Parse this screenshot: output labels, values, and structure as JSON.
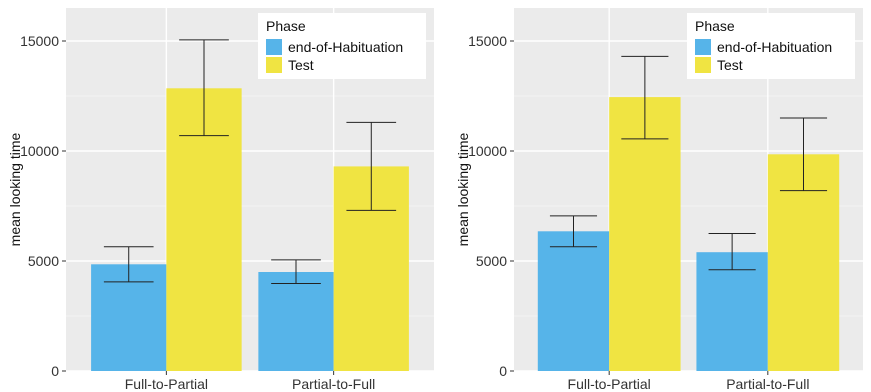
{
  "chart_data": [
    {
      "type": "bar",
      "categories": [
        "Full-to-Partial",
        "Partial-to-Full"
      ],
      "ylabel": "mean looking time",
      "xlabel": "",
      "ylim": [
        0,
        16500
      ],
      "yticks": [
        0,
        5000,
        10000,
        15000
      ],
      "ytick_labels": [
        "0",
        "5000",
        "10000",
        "15000"
      ],
      "grid": true,
      "legend": {
        "title": "Phase",
        "placement": "top-right"
      },
      "series": [
        {
          "name": "end-of-Habituation",
          "color": "#56B4E9",
          "values": [
            4850,
            4500
          ],
          "error_low": [
            4050,
            3980
          ],
          "error_high": [
            5650,
            5050
          ]
        },
        {
          "name": "Test",
          "color": "#F0E442",
          "values": [
            12850,
            9300
          ],
          "error_low": [
            10700,
            7300
          ],
          "error_high": [
            15050,
            11300
          ]
        }
      ]
    },
    {
      "type": "bar",
      "categories": [
        "Full-to-Partial",
        "Partial-to-Full"
      ],
      "ylabel": "mean looking time",
      "xlabel": "",
      "ylim": [
        0,
        16500
      ],
      "yticks": [
        0,
        5000,
        10000,
        15000
      ],
      "ytick_labels": [
        "0",
        "5000",
        "10000",
        "15000"
      ],
      "grid": true,
      "legend": {
        "title": "Phase",
        "placement": "top-right"
      },
      "series": [
        {
          "name": "end-of-Habituation",
          "color": "#56B4E9",
          "values": [
            6350,
            5400
          ],
          "error_low": [
            5650,
            4600
          ],
          "error_high": [
            7050,
            6250
          ]
        },
        {
          "name": "Test",
          "color": "#F0E442",
          "values": [
            12450,
            9850
          ],
          "error_low": [
            10550,
            8200
          ],
          "error_high": [
            14300,
            11500
          ]
        }
      ]
    }
  ]
}
